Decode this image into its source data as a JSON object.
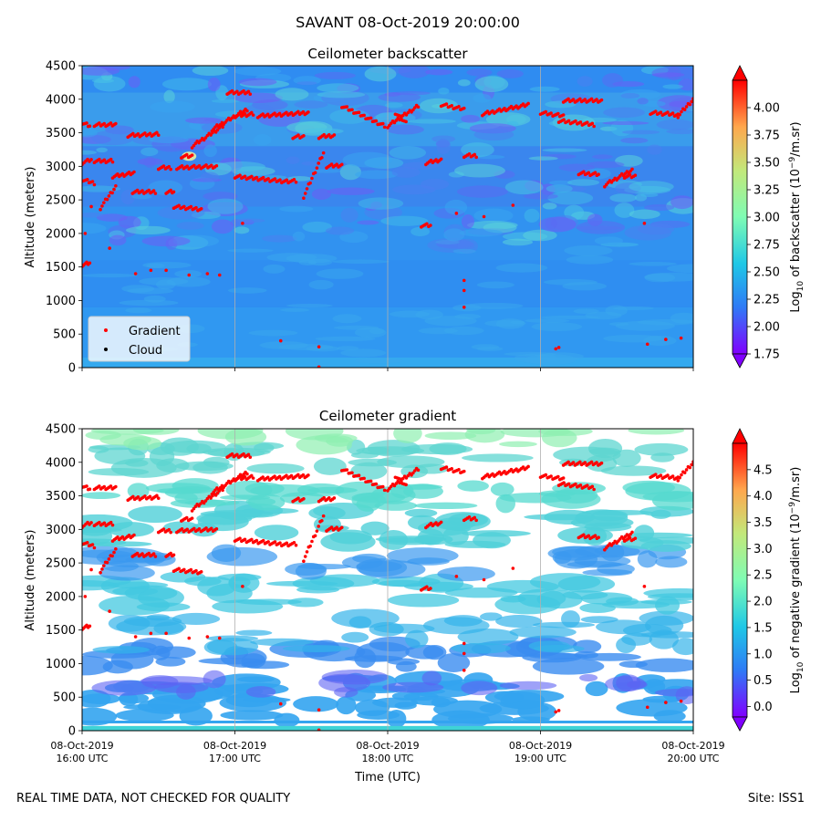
{
  "figure": {
    "title": "SAVANT 08-Oct-2019 20:00:00",
    "footer_left": "REAL TIME DATA, NOT CHECKED FOR QUALITY",
    "footer_right": "Site: ISS1"
  },
  "chart_data": [
    {
      "type": "heatmap",
      "title": "Ceilometer backscatter",
      "ylabel": "Altitude (meters)",
      "xlabel": "",
      "ylim": [
        0,
        4500
      ],
      "yticks": [
        0,
        500,
        1000,
        1500,
        2000,
        2500,
        3000,
        3500,
        4000,
        4500
      ],
      "xlim_hours": [
        16,
        20
      ],
      "xticks_hours": [
        16,
        17,
        18,
        19,
        20
      ],
      "colorbar": {
        "label": "Log10 of backscatter (10^-9/m.sr)",
        "label_parts": [
          "Log",
          "10",
          " of backscatter (10",
          "−9",
          "/m.sr)"
        ],
        "range": [
          1.75,
          4.25
        ],
        "ticks": [
          "1.75",
          "2.00",
          "2.25",
          "2.50",
          "2.75",
          "3.00",
          "3.25",
          "3.50",
          "3.75",
          "4.00"
        ],
        "tick_values": [
          1.75,
          2.0,
          2.25,
          2.5,
          2.75,
          3.0,
          3.25,
          3.5,
          3.75,
          4.0
        ],
        "extend": "both"
      },
      "legend": {
        "location": "lower-left",
        "entries": [
          {
            "label": "Gradient",
            "color": "#ff0000"
          },
          {
            "label": "Cloud",
            "color": "#000000"
          }
        ]
      }
    },
    {
      "type": "heatmap",
      "title": "Ceilometer gradient",
      "ylabel": "Altitude (meters)",
      "xlabel": "Time (UTC)",
      "ylim": [
        0,
        4500
      ],
      "yticks": [
        0,
        500,
        1000,
        1500,
        2000,
        2500,
        3000,
        3500,
        4000,
        4500
      ],
      "xlim_hours": [
        16,
        20
      ],
      "xticks_hours": [
        16,
        17,
        18,
        19,
        20
      ],
      "xtick_labels": [
        [
          "08-Oct-2019",
          "16:00 UTC"
        ],
        [
          "08-Oct-2019",
          "17:00 UTC"
        ],
        [
          "08-Oct-2019",
          "18:00 UTC"
        ],
        [
          "08-Oct-2019",
          "19:00 UTC"
        ],
        [
          "08-Oct-2019",
          "20:00 UTC"
        ]
      ],
      "colorbar": {
        "label": "Log10 of negative gradient (10^-9/m.sr)",
        "label_parts": [
          "Log",
          "10",
          " of negative gradient (10",
          "−9",
          "/m.sr)"
        ],
        "range": [
          -0.2,
          5.0
        ],
        "ticks": [
          "0.0",
          "0.5",
          "1.0",
          "1.5",
          "2.0",
          "2.5",
          "3.0",
          "3.5",
          "4.0",
          "4.5"
        ],
        "tick_values": [
          0.0,
          0.5,
          1.0,
          1.5,
          2.0,
          2.5,
          3.0,
          3.5,
          4.0,
          4.5
        ],
        "extend": "both"
      }
    }
  ],
  "gradient_points": {
    "description_free": true,
    "segments": [
      {
        "t0": 16.0,
        "t1": 16.05,
        "z": [
          3650,
          3600
        ]
      },
      {
        "t0": 16.0,
        "t1": 16.06,
        "z": [
          3050,
          3100
        ]
      },
      {
        "t0": 16.0,
        "t1": 16.08,
        "z": [
          2800,
          2750
        ]
      },
      {
        "t0": 16.0,
        "t1": 16.05,
        "z": [
          1530,
          1560
        ]
      },
      {
        "t0": 16.08,
        "t1": 16.22,
        "z": [
          3620,
          3620
        ]
      },
      {
        "t0": 16.08,
        "t1": 16.2,
        "z": [
          3080,
          3080
        ]
      },
      {
        "t0": 16.12,
        "t1": 16.22,
        "z": [
          2380,
          2700
        ]
      },
      {
        "t0": 16.3,
        "t1": 16.5,
        "z": [
          3460,
          3480
        ]
      },
      {
        "t0": 16.2,
        "t1": 16.34,
        "z": [
          2850,
          2900
        ]
      },
      {
        "t0": 16.33,
        "t1": 16.48,
        "z": [
          2620,
          2620
        ]
      },
      {
        "t0": 16.5,
        "t1": 16.58,
        "z": [
          2980,
          2980
        ]
      },
      {
        "t0": 16.55,
        "t1": 16.6,
        "z": [
          2620,
          2620
        ]
      },
      {
        "t0": 16.6,
        "t1": 16.78,
        "z": [
          2400,
          2360
        ]
      },
      {
        "t0": 16.62,
        "t1": 16.88,
        "z": [
          2980,
          3000
        ]
      },
      {
        "t0": 16.65,
        "t1": 16.72,
        "z": [
          3150,
          3150
        ]
      },
      {
        "t0": 16.72,
        "t1": 16.92,
        "z": [
          3300,
          3600
        ]
      },
      {
        "t0": 16.85,
        "t1": 17.08,
        "z": [
          3550,
          3850
        ]
      },
      {
        "t0": 16.95,
        "t1": 17.1,
        "z": [
          4100,
          4100
        ]
      },
      {
        "t0": 17.0,
        "t1": 17.12,
        "z": [
          3750,
          3780
        ]
      },
      {
        "t0": 17.0,
        "t1": 17.35,
        "z": [
          2850,
          2770
        ]
      },
      {
        "t0": 17.15,
        "t1": 17.48,
        "z": [
          3750,
          3800
        ]
      },
      {
        "t0": 17.35,
        "t1": 17.4,
        "z": [
          2780,
          2780
        ]
      },
      {
        "t0": 17.38,
        "t1": 17.45,
        "z": [
          3440,
          3440
        ]
      },
      {
        "t0": 17.45,
        "t1": 17.58,
        "z": [
          2550,
          3200
        ]
      },
      {
        "t0": 17.55,
        "t1": 17.65,
        "z": [
          3440,
          3460
        ]
      },
      {
        "t0": 17.6,
        "t1": 17.7,
        "z": [
          3000,
          3020
        ]
      },
      {
        "t0": 17.7,
        "t1": 17.98,
        "z": [
          3900,
          3600
        ]
      },
      {
        "t0": 18.0,
        "t1": 18.2,
        "z": [
          3600,
          3900
        ]
      },
      {
        "t0": 18.05,
        "t1": 18.12,
        "z": [
          3800,
          3650
        ]
      },
      {
        "t0": 18.22,
        "t1": 18.28,
        "z": [
          2120,
          2120
        ]
      },
      {
        "t0": 18.25,
        "t1": 18.35,
        "z": [
          3050,
          3100
        ]
      },
      {
        "t0": 18.35,
        "t1": 18.5,
        "z": [
          3920,
          3850
        ]
      },
      {
        "t0": 18.5,
        "t1": 18.58,
        "z": [
          3160,
          3160
        ]
      },
      {
        "t0": 18.62,
        "t1": 18.92,
        "z": [
          3780,
          3920
        ]
      },
      {
        "t0": 19.0,
        "t1": 19.15,
        "z": [
          3800,
          3750
        ]
      },
      {
        "t0": 19.12,
        "t1": 19.35,
        "z": [
          3680,
          3620
        ]
      },
      {
        "t0": 19.15,
        "t1": 19.4,
        "z": [
          3980,
          3980
        ]
      },
      {
        "t0": 19.25,
        "t1": 19.38,
        "z": [
          2900,
          2880
        ]
      },
      {
        "t0": 19.42,
        "t1": 19.6,
        "z": [
          2720,
          2950
        ]
      },
      {
        "t0": 19.55,
        "t1": 19.62,
        "z": [
          2850,
          2850
        ]
      },
      {
        "t0": 19.72,
        "t1": 19.9,
        "z": [
          3800,
          3770
        ]
      },
      {
        "t0": 19.9,
        "t1": 20.0,
        "z": [
          3750,
          4000
        ]
      }
    ],
    "isolated": [
      [
        16.18,
        1780
      ],
      [
        16.35,
        1400
      ],
      [
        16.45,
        1450
      ],
      [
        16.55,
        1450
      ],
      [
        16.7,
        1380
      ],
      [
        16.82,
        1400
      ],
      [
        16.9,
        1380
      ],
      [
        17.05,
        2150
      ],
      [
        17.3,
        400
      ],
      [
        17.55,
        310
      ],
      [
        17.55,
        10
      ],
      [
        18.5,
        1300
      ],
      [
        18.5,
        1150
      ],
      [
        18.5,
        900
      ],
      [
        18.45,
        2300
      ],
      [
        18.63,
        2250
      ],
      [
        18.82,
        2420
      ],
      [
        19.1,
        280
      ],
      [
        19.12,
        300
      ],
      [
        19.7,
        350
      ],
      [
        19.82,
        420
      ],
      [
        19.92,
        440
      ],
      [
        19.68,
        2150
      ],
      [
        16.02,
        2000
      ],
      [
        16.06,
        2400
      ]
    ]
  }
}
